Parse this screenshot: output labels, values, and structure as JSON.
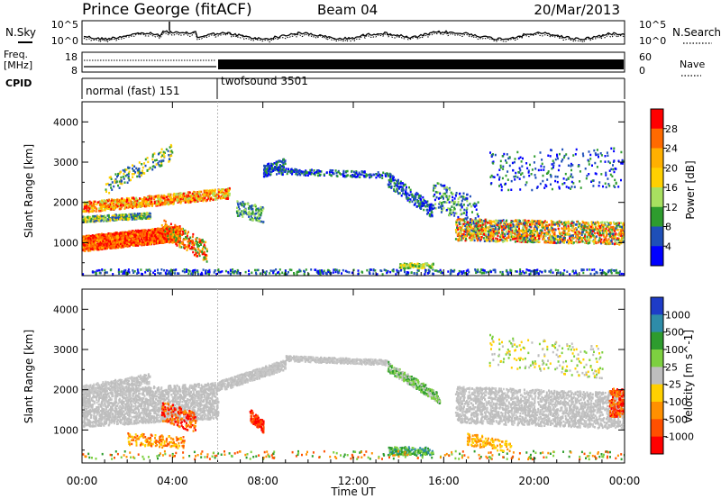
{
  "header": {
    "station": "Prince George (fitACF)",
    "beam": "Beam 04",
    "date": "20/Mar/2013"
  },
  "strip": {
    "nsky_label": "N.Sky",
    "nsearch_label": "N.Search",
    "freq_label_1": "Freq.",
    "freq_label_2": "[MHz]",
    "nave_label": "Nave",
    "cpid_label": "CPID",
    "noise_ticks": [
      "10^5",
      "10^0"
    ],
    "noise_ticks_right": [
      "10^5",
      "10^0"
    ],
    "freq_ticks": [
      "18",
      "8"
    ],
    "nave_ticks": [
      "60",
      "0"
    ],
    "cpid_segments": [
      {
        "start_hour": 0,
        "end_hour": 6,
        "label": "normal (fast) 151"
      },
      {
        "start_hour": 6,
        "end_hour": 24,
        "label": "twofsound 3501"
      }
    ]
  },
  "chart_data": [
    {
      "type": "heatmap",
      "panel": "power",
      "ylabel": "Slant Range [km]",
      "ylim": [
        180,
        4500
      ],
      "y_ticks": [
        "4000",
        "3000",
        "2000",
        "1000"
      ],
      "colorbar_label": "Power [dB]",
      "colorbar_ticks": [
        "28",
        "24",
        "20",
        "16",
        "12",
        "8",
        "4"
      ],
      "colorbar_colors": [
        "#ff0000",
        "#ff6a00",
        "#ffb000",
        "#ffd000",
        "#a8e060",
        "#2e9c2e",
        "#1e4fb8",
        "#0000ff"
      ],
      "features": [
        {
          "name": "main band",
          "x_hours": [
            0,
            4.3
          ],
          "y_km": [
            900,
            1300
          ],
          "level": "high"
        },
        {
          "name": "upper band",
          "x_hours": [
            0,
            6.5
          ],
          "y_km": [
            1800,
            2300
          ],
          "level": "medium"
        },
        {
          "name": "evening band",
          "x_hours": [
            17.5,
            24
          ],
          "y_km": [
            1000,
            1700
          ],
          "level": "medium-high"
        }
      ]
    },
    {
      "type": "heatmap",
      "panel": "velocity",
      "xlabel": "Time UT",
      "ylabel": "Slant Range [km]",
      "ylim": [
        180,
        4500
      ],
      "x_ticks": [
        "00:00",
        "04:00",
        "08:00",
        "12:00",
        "16:00",
        "20:00",
        "00:00"
      ],
      "y_ticks": [
        "4000",
        "3000",
        "2000",
        "1000"
      ],
      "colorbar_label": "Velocity [m s^-1]",
      "colorbar_ticks": [
        "1000",
        "500",
        "100",
        "25",
        "-25",
        "-100",
        "-500",
        "-1000"
      ],
      "colorbar_colors": [
        "#1e3cc8",
        "#2e8ca8",
        "#2e9c2e",
        "#7dd040",
        "#bebebe",
        "#ffd000",
        "#ff9000",
        "#ff5000",
        "#ff0000"
      ]
    }
  ]
}
